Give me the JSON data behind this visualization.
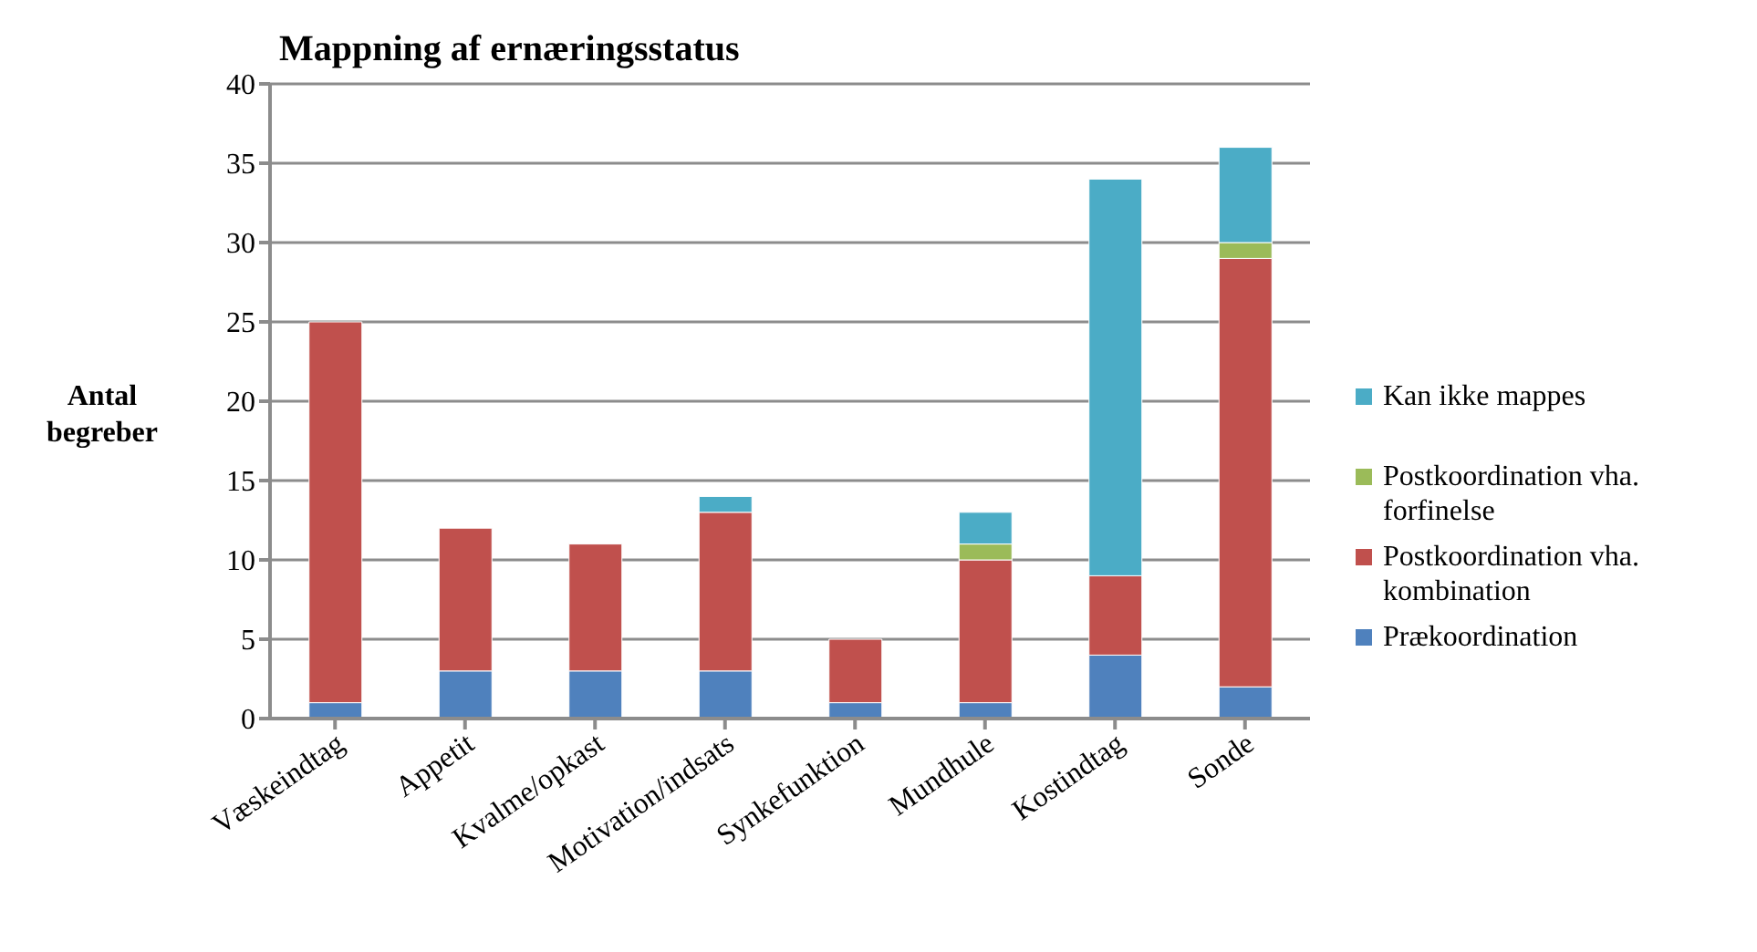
{
  "chart_data": {
    "type": "bar",
    "title": "Mappning af ernæringsstatus",
    "ylabel": "Antal begreber",
    "stacked": true,
    "grid": "y",
    "legend": "right",
    "categories": [
      "Væskeindtag",
      "Appetit",
      "Kvalme/opkast",
      "Motivation/indsats",
      "Synkefunktion",
      "Mundhule",
      "Kostindtag",
      "Sonde"
    ],
    "ylim": [
      0,
      40
    ],
    "yticks": [
      0,
      5,
      10,
      15,
      20,
      25,
      30,
      35,
      40
    ],
    "series": [
      {
        "name": "Prækoordination",
        "color": "#4f81bd",
        "values": [
          1,
          3,
          3,
          3,
          1,
          1,
          4,
          2
        ]
      },
      {
        "name": "Postkoordination vha. kombination",
        "color": "#c0504d",
        "values": [
          24,
          9,
          8,
          10,
          4,
          9,
          5,
          27
        ]
      },
      {
        "name": "Postkoordination vha. forfinelse",
        "color": "#9bbb59",
        "values": [
          null,
          null,
          null,
          null,
          null,
          1,
          null,
          1
        ]
      },
      {
        "name": "Kan ikke mappes",
        "color": "#4bacc6",
        "values": [
          null,
          null,
          null,
          1,
          null,
          2,
          25,
          6
        ]
      }
    ]
  }
}
